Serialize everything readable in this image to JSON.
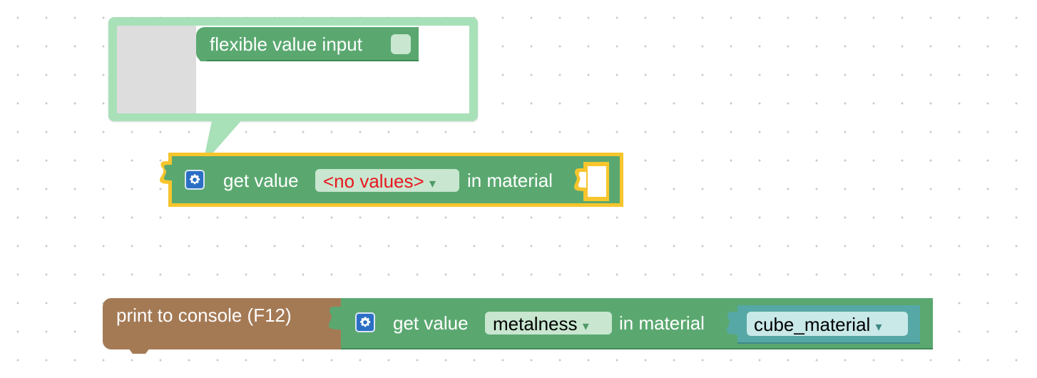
{
  "workspace": {
    "mutator": {
      "block_label": "flexible value input"
    },
    "get_value_block_1": {
      "prefix_label": "get value",
      "dropdown_value": "<no values>",
      "dropdown_arrow": "▾",
      "suffix_label": "in material",
      "selected": true,
      "highlight_color": "#f7c52c"
    },
    "print_block": {
      "label": "print to console (F12)",
      "color": "#a47a55"
    },
    "get_value_block_2": {
      "prefix_label": "get value",
      "dropdown_value": "metalness",
      "dropdown_arrow": "▾",
      "suffix_label": "in material",
      "material_value": "cube_material",
      "material_arrow": "▾",
      "color": "#5aa870"
    }
  }
}
